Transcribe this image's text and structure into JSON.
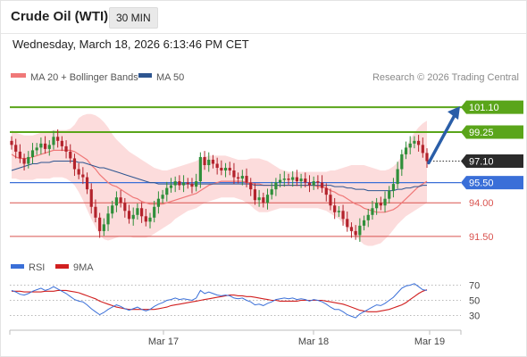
{
  "header": {
    "title": "Crude Oil (WTI)",
    "interval": "30 MIN",
    "datetime": "Wednesday, March 18, 2026 6:13:46 PM CET"
  },
  "legend": {
    "ma20_label": "MA 20 + Bollinger Bands",
    "ma50_label": "MA 50",
    "copyright": "Research © 2026 Trading Central",
    "rsi_label": "RSI",
    "rsi_ma_label": "9MA"
  },
  "colors": {
    "ma20": "#f07878",
    "bollinger_fill": "#fbd3d3",
    "ma50": "#2d5590",
    "up_candle": "#2f8f3a",
    "down_candle": "#b3232c",
    "resistance": "#5aa51a",
    "support": "#d9534f",
    "pivot": "#3a6fd8",
    "last_price": "#2b2b2b",
    "arrow": "#2a5ea8",
    "rsi": "#3a6fd8",
    "rsi_ma": "#d11f1f"
  },
  "chart_data": [
    {
      "type": "candlestick",
      "title": "Crude Oil (WTI)",
      "ylim": [
        90.7,
        102.7
      ],
      "x_tick_labels": [
        "Mar 17",
        "Mar 18",
        "Mar 19"
      ],
      "levels": [
        {
          "value": 101.1,
          "label": "101.10",
          "kind": "resistance"
        },
        {
          "value": 99.25,
          "label": "99.25",
          "kind": "resistance"
        },
        {
          "value": 97.1,
          "label": "97.10",
          "kind": "last"
        },
        {
          "value": 95.5,
          "label": "95.50",
          "kind": "pivot"
        },
        {
          "value": 94.0,
          "label": "94.00",
          "kind": "support"
        },
        {
          "value": 91.5,
          "label": "91.50",
          "kind": "support"
        }
      ],
      "close": [
        98.3,
        97.8,
        97.3,
        96.9,
        97.4,
        97.9,
        98.1,
        98.4,
        98.0,
        98.3,
        98.9,
        98.6,
        98.2,
        97.8,
        97.3,
        96.5,
        96.1,
        95.9,
        95.0,
        93.7,
        92.9,
        91.9,
        92.4,
        93.2,
        93.8,
        94.4,
        94.0,
        93.4,
        92.8,
        93.1,
        93.6,
        93.0,
        92.6,
        92.9,
        93.7,
        94.3,
        94.6,
        95.1,
        95.3,
        95.6,
        95.3,
        95.5,
        95.4,
        95.2,
        95.6,
        97.4,
        96.8,
        97.2,
        96.9,
        96.6,
        96.4,
        96.6,
        96.4,
        95.9,
        95.8,
        96.0,
        95.5,
        95.0,
        94.2,
        94.4,
        94.0,
        94.6,
        95.0,
        95.5,
        95.7,
        95.8,
        95.7,
        95.9,
        95.6,
        95.8,
        95.5,
        95.3,
        95.6,
        95.5,
        95.1,
        94.6,
        93.8,
        93.3,
        93.4,
        92.8,
        92.2,
        91.9,
        91.6,
        92.3,
        92.7,
        93.1,
        93.6,
        94.0,
        93.8,
        94.3,
        94.9,
        95.4,
        96.5,
        97.6,
        98.1,
        98.4,
        98.6,
        98.3,
        97.7,
        97.1
      ],
      "ma20": [
        97.6,
        97.4,
        97.3,
        97.3,
        97.3,
        97.4,
        97.5,
        97.6,
        97.7,
        97.8,
        97.9,
        97.9,
        97.9,
        97.9,
        97.9,
        97.8,
        97.6,
        97.4,
        97.2,
        96.8,
        96.5,
        96.1,
        95.8,
        95.5,
        95.3,
        95.2,
        95.0,
        94.8,
        94.6,
        94.4,
        94.3,
        94.1,
        94.0,
        93.9,
        93.9,
        93.9,
        93.9,
        94.0,
        94.1,
        94.2,
        94.3,
        94.4,
        94.5,
        94.6,
        94.7,
        94.9,
        95.1,
        95.3,
        95.4,
        95.5,
        95.6,
        95.6,
        95.6,
        95.6,
        95.6,
        95.6,
        95.5,
        95.5,
        95.4,
        95.4,
        95.3,
        95.3,
        95.3,
        95.3,
        95.3,
        95.3,
        95.3,
        95.3,
        95.3,
        95.3,
        95.3,
        95.3,
        95.3,
        95.2,
        95.2,
        95.1,
        94.9,
        94.8,
        94.6,
        94.5,
        94.3,
        94.1,
        93.9,
        93.8,
        93.6,
        93.5,
        93.4,
        93.3,
        93.3,
        93.3,
        93.4,
        93.5,
        93.7,
        94.0,
        94.3,
        94.6,
        94.9,
        95.2,
        95.4,
        95.6
      ],
      "bb_upper": [
        99.4,
        99.2,
        99.1,
        99.0,
        99.0,
        99.0,
        99.1,
        99.2,
        99.3,
        99.3,
        99.4,
        99.4,
        99.4,
        99.4,
        99.5,
        99.8,
        100.3,
        100.5,
        100.6,
        100.6,
        100.5,
        100.3,
        100.0,
        99.6,
        99.1,
        98.7,
        98.4,
        98.1,
        97.8,
        97.6,
        97.4,
        97.2,
        97.0,
        96.8,
        96.6,
        96.5,
        96.4,
        96.4,
        96.5,
        96.6,
        96.7,
        96.8,
        96.9,
        97.0,
        97.1,
        97.3,
        97.4,
        97.5,
        97.5,
        97.5,
        97.5,
        97.5,
        97.4,
        97.3,
        97.2,
        97.2,
        97.2,
        97.3,
        97.3,
        97.3,
        97.2,
        97.1,
        96.9,
        96.7,
        96.5,
        96.4,
        96.3,
        96.3,
        96.3,
        96.3,
        96.3,
        96.3,
        96.3,
        96.3,
        96.3,
        96.3,
        96.4,
        96.4,
        96.5,
        96.6,
        96.7,
        96.8,
        96.8,
        96.8,
        96.8,
        96.7,
        96.6,
        96.5,
        96.4,
        96.4,
        96.5,
        96.7,
        97.0,
        97.5,
        98.1,
        98.7,
        99.2,
        99.6,
        99.9,
        100.1
      ],
      "bb_lower": [
        95.8,
        95.8,
        95.7,
        95.7,
        95.7,
        95.7,
        95.8,
        95.8,
        95.8,
        95.8,
        95.9,
        95.9,
        95.9,
        95.8,
        95.6,
        95.3,
        94.8,
        94.2,
        93.5,
        92.8,
        92.2,
        91.6,
        91.3,
        91.2,
        91.3,
        91.4,
        91.5,
        91.5,
        91.5,
        91.4,
        91.4,
        91.4,
        91.4,
        91.5,
        91.7,
        91.9,
        92.1,
        92.3,
        92.5,
        92.8,
        93.0,
        93.2,
        93.4,
        93.5,
        93.6,
        93.8,
        94.0,
        94.1,
        94.2,
        94.3,
        94.4,
        94.4,
        94.4,
        94.4,
        94.3,
        94.2,
        94.0,
        93.8,
        93.5,
        93.3,
        93.3,
        93.3,
        93.4,
        93.5,
        93.6,
        93.6,
        93.6,
        93.6,
        93.6,
        93.6,
        93.6,
        93.6,
        93.6,
        93.6,
        93.5,
        93.4,
        93.2,
        93.0,
        92.8,
        92.5,
        92.2,
        91.9,
        91.5,
        91.2,
        90.9,
        90.8,
        90.8,
        90.9,
        91.0,
        91.3,
        91.6,
        92.0,
        92.4,
        92.7,
        93.0,
        93.2,
        93.4,
        93.6,
        93.8,
        94.0
      ],
      "ma50": [
        96.4,
        96.5,
        96.6,
        96.7,
        96.8,
        96.9,
        96.9,
        97.0,
        97.0,
        97.0,
        97.1,
        97.1,
        97.1,
        97.1,
        97.1,
        97.1,
        97.0,
        97.0,
        96.9,
        96.8,
        96.7,
        96.6,
        96.6,
        96.5,
        96.4,
        96.3,
        96.2,
        96.1,
        96.0,
        95.9,
        95.8,
        95.7,
        95.6,
        95.5,
        95.5,
        95.4,
        95.4,
        95.4,
        95.4,
        95.4,
        95.4,
        95.4,
        95.4,
        95.4,
        95.4,
        95.4,
        95.4,
        95.4,
        95.4,
        95.4,
        95.4,
        95.4,
        95.4,
        95.4,
        95.4,
        95.4,
        95.4,
        95.4,
        95.3,
        95.3,
        95.3,
        95.3,
        95.3,
        95.3,
        95.3,
        95.3,
        95.3,
        95.3,
        95.3,
        95.3,
        95.3,
        95.3,
        95.3,
        95.3,
        95.3,
        95.3,
        95.3,
        95.2,
        95.2,
        95.2,
        95.1,
        95.1,
        95.0,
        95.0,
        95.0,
        94.9,
        94.9,
        94.9,
        94.9,
        94.9,
        94.9,
        94.9,
        95.0,
        95.0,
        95.1,
        95.1,
        95.2,
        95.2,
        95.3,
        95.3
      ],
      "forecast_target": 101.1
    },
    {
      "type": "line",
      "title": "RSI",
      "ylim": [
        20,
        80
      ],
      "y_ticks": [
        30,
        50,
        70
      ],
      "series": [
        {
          "name": "RSI",
          "values": [
            63,
            61,
            58,
            57,
            59,
            62,
            64,
            66,
            63,
            65,
            68,
            65,
            62,
            59,
            55,
            51,
            49,
            48,
            44,
            39,
            35,
            31,
            34,
            38,
            41,
            44,
            42,
            39,
            37,
            39,
            41,
            38,
            36,
            38,
            42,
            45,
            47,
            50,
            51,
            53,
            51,
            52,
            51,
            50,
            53,
            63,
            59,
            61,
            59,
            57,
            56,
            57,
            56,
            53,
            52,
            53,
            50,
            48,
            44,
            45,
            43,
            46,
            48,
            51,
            52,
            53,
            52,
            53,
            51,
            52,
            51,
            49,
            51,
            50,
            48,
            45,
            41,
            38,
            38,
            35,
            31,
            29,
            27,
            32,
            35,
            38,
            41,
            44,
            43,
            46,
            50,
            54,
            60,
            66,
            69,
            70,
            72,
            68,
            64,
            63
          ]
        },
        {
          "name": "9MA",
          "values": [
            62,
            62,
            62,
            61,
            61,
            61,
            61,
            61,
            62,
            62,
            62,
            63,
            63,
            63,
            62,
            61,
            60,
            58,
            56,
            54,
            52,
            49,
            47,
            45,
            43,
            41,
            40,
            39,
            38,
            38,
            38,
            38,
            38,
            38,
            38,
            39,
            40,
            41,
            43,
            44,
            45,
            46,
            47,
            48,
            49,
            50,
            51,
            52,
            53,
            54,
            55,
            56,
            57,
            57,
            56,
            56,
            55,
            55,
            54,
            53,
            52,
            51,
            50,
            50,
            49,
            49,
            49,
            49,
            49,
            50,
            50,
            50,
            50,
            50,
            50,
            49,
            48,
            47,
            46,
            45,
            43,
            41,
            39,
            37,
            36,
            35,
            35,
            35,
            36,
            37,
            38,
            40,
            42,
            44,
            47,
            51,
            55,
            59,
            62,
            64
          ]
        }
      ],
      "x_tick_labels": [
        "Mar 17",
        "Mar 18",
        "Mar 19"
      ]
    }
  ]
}
